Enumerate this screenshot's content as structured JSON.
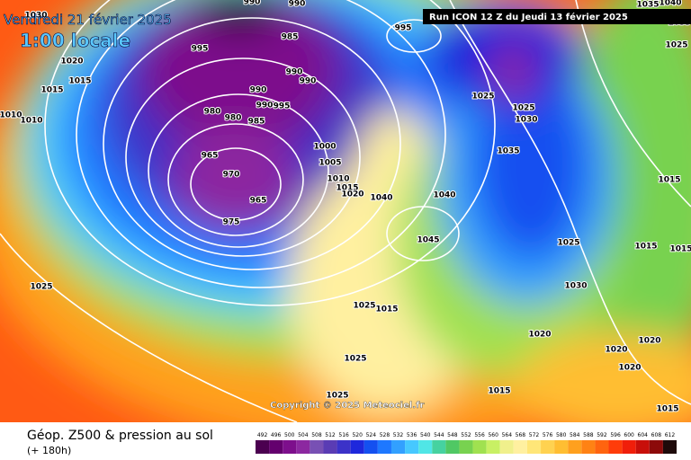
{
  "header": {
    "date": "Vendredi 21 février 2025",
    "time": "1:00 locale",
    "run": "Run ICON 12 Z du Jeudi 13 février 2025"
  },
  "footer": {
    "title": "Géop. Z500 & pression au sol",
    "subtitle": "(+ 180h)",
    "copyright": "Copyright © 2025 Meteociel.fr"
  },
  "colorbar": {
    "levels": [
      492,
      496,
      500,
      504,
      508,
      512,
      516,
      520,
      524,
      528,
      532,
      536,
      540,
      544,
      548,
      552,
      556,
      560,
      564,
      568,
      572,
      576,
      580,
      584,
      588,
      592,
      596,
      600,
      604,
      608,
      612
    ],
    "colors": [
      "#4b0050",
      "#64006e",
      "#7d0f8c",
      "#8c28a0",
      "#7850b4",
      "#5a3cb4",
      "#3c32c8",
      "#1e28dc",
      "#1450f0",
      "#1e78ff",
      "#32a0ff",
      "#46c8ff",
      "#50e6e6",
      "#46d2a0",
      "#50c864",
      "#78d250",
      "#a0e150",
      "#c8f064",
      "#f0f08c",
      "#fff0a0",
      "#ffe678",
      "#ffd250",
      "#ffbe32",
      "#ffa01e",
      "#ff8214",
      "#ff640f",
      "#ff3c0a",
      "#f01e0a",
      "#c80f0a",
      "#8c0a0a",
      "#1e0a0a"
    ]
  },
  "isobar_labels": [
    995,
    985,
    995,
    990,
    990,
    990,
    990,
    995,
    980,
    980,
    985,
    965,
    970,
    965,
    975,
    1020,
    1015,
    1015,
    1010,
    1010,
    1000,
    1005,
    1010,
    1015,
    1020,
    1040,
    1040,
    1045,
    1035,
    1025,
    1025,
    1030,
    1025,
    1030,
    1025,
    1025,
    1015,
    1025,
    1020,
    1020,
    1020,
    1020,
    1015,
    1025,
    1015,
    1015,
    1015,
    1015,
    1025,
    1030,
    990,
    990,
    1035,
    1040,
    1035
  ]
}
